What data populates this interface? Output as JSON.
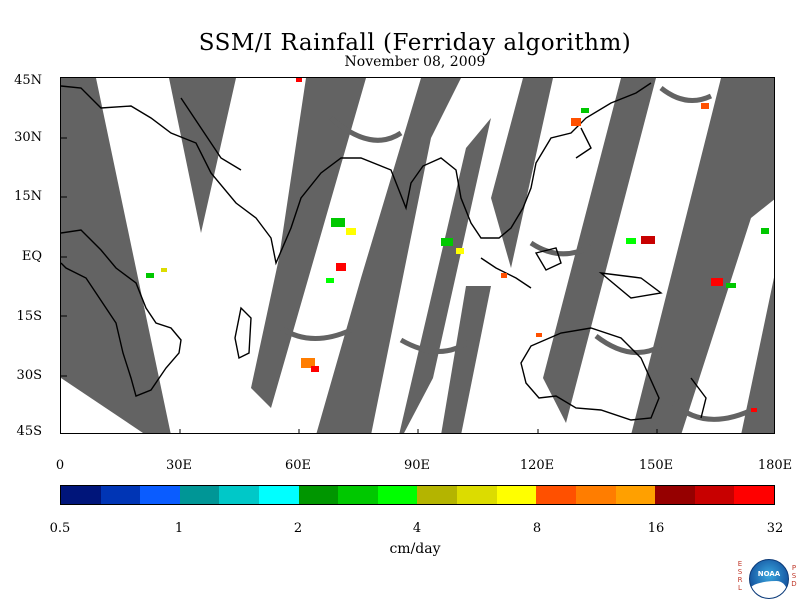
{
  "header": {
    "title": "SSM/I Rainfall (Ferriday algorithm)",
    "date": "November 08, 2009"
  },
  "map": {
    "lat_labels": [
      "45N",
      "30N",
      "15N",
      "EQ",
      "15S",
      "30S",
      "45S"
    ],
    "lon_labels": [
      "0",
      "30E",
      "60E",
      "90E",
      "120E",
      "150E",
      "180E"
    ],
    "lat_range": [
      -45,
      45
    ],
    "lon_range": [
      0,
      180
    ],
    "swath_gap_color": "#636363",
    "coastline_color": "#000000"
  },
  "colorbar": {
    "colors": [
      "#00157a",
      "#0035b5",
      "#0a5cff",
      "#009696",
      "#00c8c8",
      "#00ffff",
      "#009600",
      "#00c800",
      "#00ff00",
      "#b4b400",
      "#dcdc00",
      "#ffff00",
      "#ff5000",
      "#ff7d00",
      "#ffa000",
      "#960000",
      "#c80000",
      "#ff0000"
    ],
    "tick_labels": [
      "0.5",
      "1",
      "2",
      "4",
      "8",
      "16",
      "32"
    ],
    "units": "cm/day"
  },
  "logo": {
    "left_letters": [
      "E",
      "S",
      "R",
      "L"
    ],
    "right_letters": [
      "P",
      "S",
      "D"
    ],
    "emblem_text": "NOAA"
  }
}
